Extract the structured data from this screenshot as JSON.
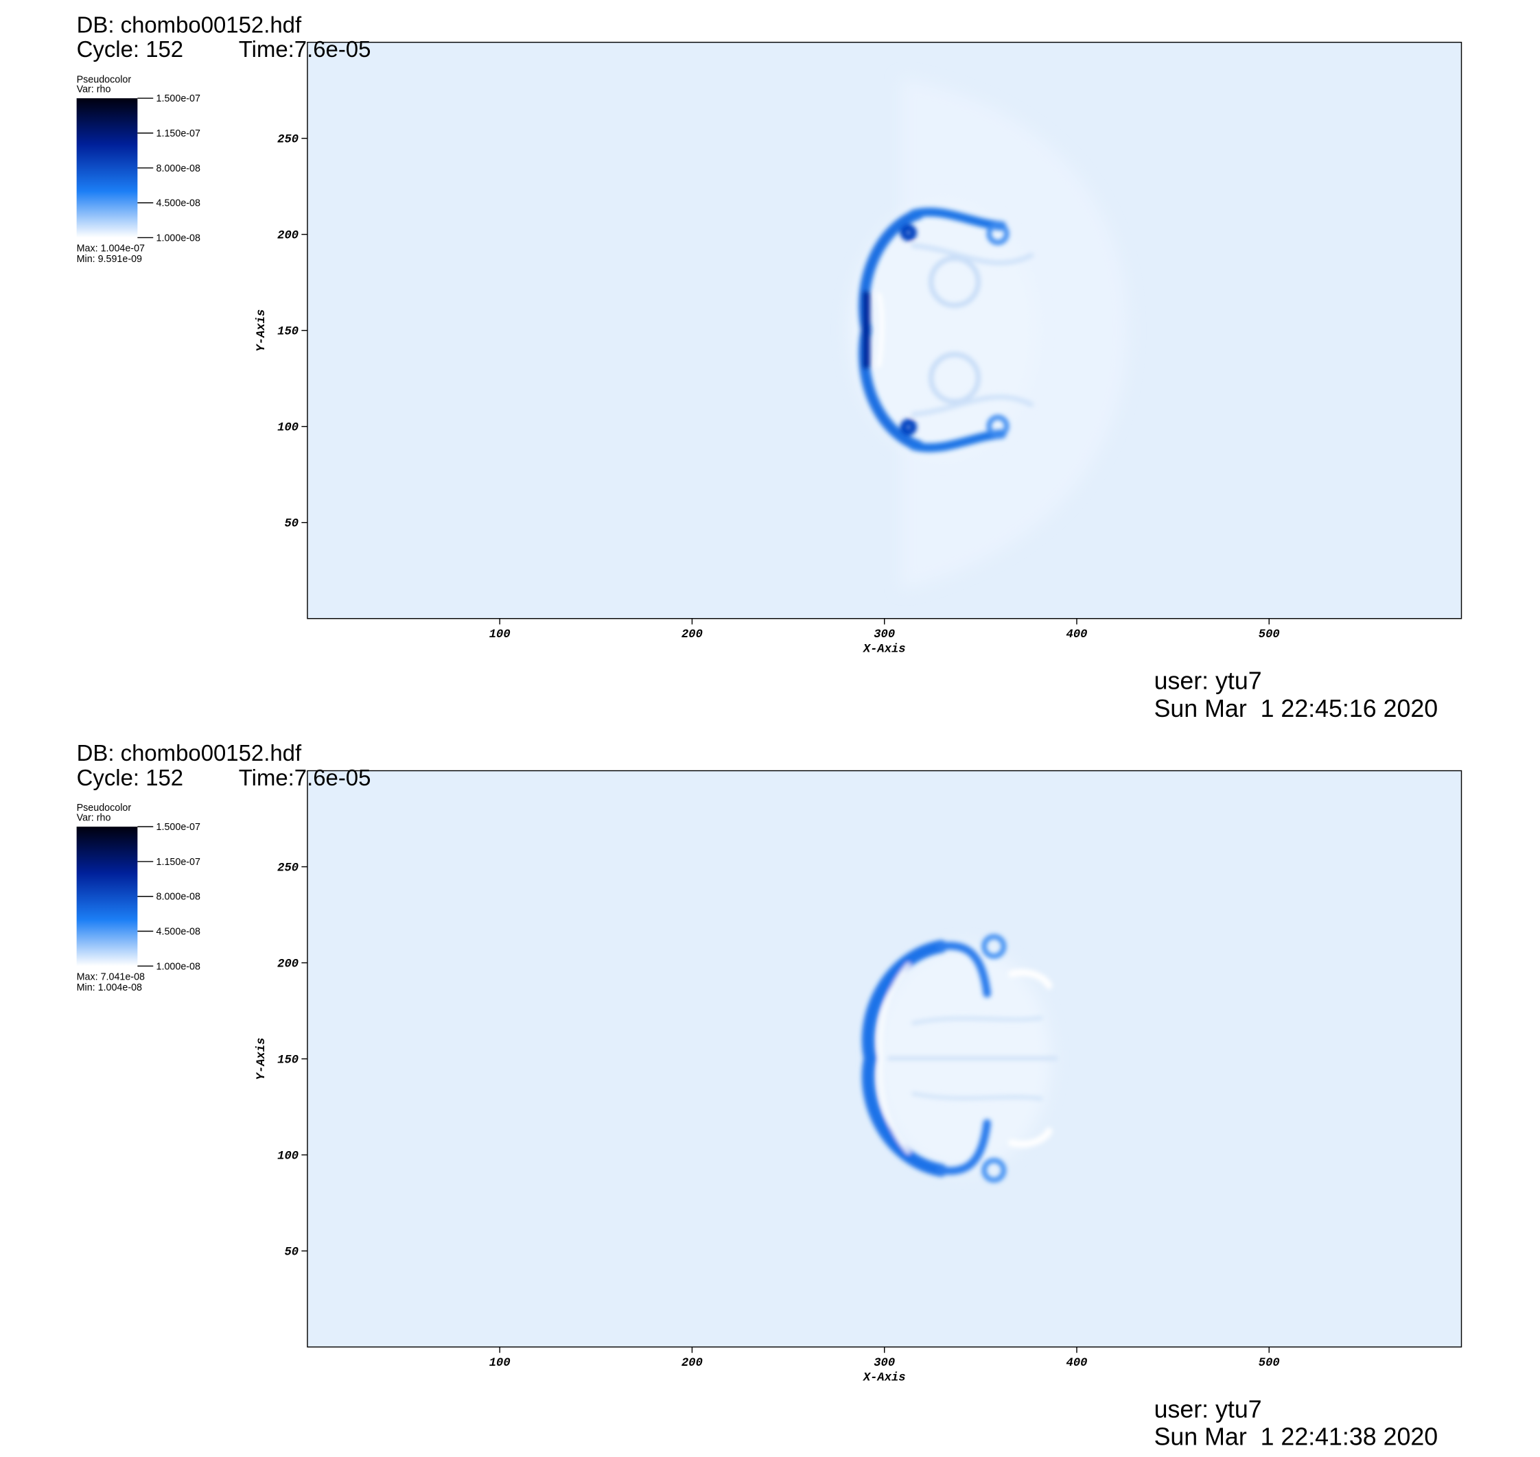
{
  "chart_data": [
    {
      "type": "pseudocolor",
      "db": "DB: chombo00152.hdf",
      "cycle": "Cycle: 152",
      "time": "Time:7.6e-05",
      "legend": {
        "title": "Pseudocolor",
        "var": "Var: rho",
        "clim": [
          1e-08,
          1.5e-07
        ],
        "ticks": [
          {
            "value": 1.5e-07,
            "label": "1.500e-07"
          },
          {
            "value": 1.15e-07,
            "label": "1.150e-07"
          },
          {
            "value": 8e-08,
            "label": "8.000e-08"
          },
          {
            "value": 4.5e-08,
            "label": "4.500e-08"
          },
          {
            "value": 1e-08,
            "label": "1.000e-08"
          }
        ],
        "max": "Max: 1.004e-07",
        "min": "Min: 9.591e-09",
        "colors": [
          "#ffffff",
          "#1c7ef5",
          "#00209a",
          "#00000f"
        ]
      },
      "xlabel": "X-Axis",
      "ylabel": "Y-Axis",
      "xlim": [
        0,
        600
      ],
      "ylim": [
        0,
        300
      ],
      "xticks": [
        100,
        200,
        300,
        400,
        500
      ],
      "yticks": [
        50,
        100,
        150,
        200,
        250
      ],
      "user": "user: ytu7",
      "date": "Sun Mar  1 22:45:16 2020"
    },
    {
      "type": "pseudocolor",
      "db": "DB: chombo00152.hdf",
      "cycle": "Cycle: 152",
      "time": "Time:7.6e-05",
      "legend": {
        "title": "Pseudocolor",
        "var": "Var: rho",
        "clim": [
          1e-08,
          1.5e-07
        ],
        "ticks": [
          {
            "value": 1.5e-07,
            "label": "1.500e-07"
          },
          {
            "value": 1.15e-07,
            "label": "1.150e-07"
          },
          {
            "value": 8e-08,
            "label": "8.000e-08"
          },
          {
            "value": 4.5e-08,
            "label": "4.500e-08"
          },
          {
            "value": 1e-08,
            "label": "1.000e-08"
          }
        ],
        "max": "Max: 7.041e-08",
        "min": "Min: 1.004e-08",
        "colors": [
          "#ffffff",
          "#1c7ef5",
          "#00209a",
          "#00000f"
        ]
      },
      "xlabel": "X-Axis",
      "ylabel": "Y-Axis",
      "xlim": [
        0,
        600
      ],
      "ylim": [
        0,
        300
      ],
      "xticks": [
        100,
        200,
        300,
        400,
        500
      ],
      "yticks": [
        50,
        100,
        150,
        200,
        250
      ],
      "user": "user: ytu7",
      "date": "Sun Mar  1 22:41:38 2020"
    }
  ]
}
